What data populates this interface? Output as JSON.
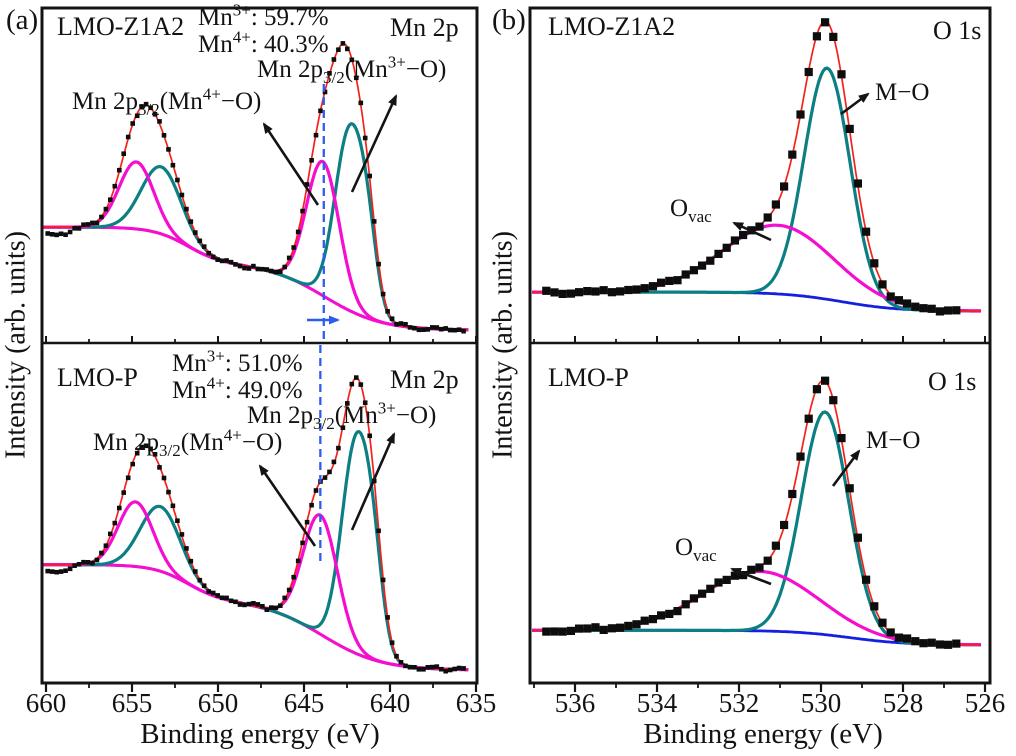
{
  "figure": {
    "panel_a": {
      "label": "(a)",
      "ylabel": "Intensity (arb. units)",
      "xlabel": "Binding energy (eV)",
      "top": {
        "sample": "LMO-Z1A2",
        "region": "Mn 2p",
        "ratio_line1": "Mn^{3+}: 59.7%",
        "ratio_line2": "Mn^{4+}: 40.3%",
        "annotation_mn3": "Mn 2p_{3/2}(Mn^{3+}−O)",
        "annotation_mn4": "Mn 2p_{3/2}(Mn^{4+}−O)"
      },
      "bottom": {
        "sample": "LMO-P",
        "region": "Mn 2p",
        "ratio_line1": "Mn^{3+}: 51.0%",
        "ratio_line2": "Mn^{4+}: 49.0%",
        "annotation_mn3": "Mn 2p_{3/2}(Mn^{3+}−O)",
        "annotation_mn4": "Mn 2p_{3/2}(Mn^{4+}−O)"
      }
    },
    "panel_b": {
      "label": "(b)",
      "ylabel": "Intensity (arb. units)",
      "xlabel": "Binding energy (eV)",
      "top": {
        "sample": "LMO-Z1A2",
        "region": "O 1s",
        "annotation_mo": "M−O",
        "annotation_ovac": "O_{vac}"
      },
      "bottom": {
        "sample": "LMO-P",
        "region": "O 1s",
        "annotation_mo": "M−O",
        "annotation_ovac": "O_{vac}"
      }
    }
  },
  "chart_data": {
    "type": "line",
    "description": "XPS spectra: (a) Mn 2p of LMO-Z1A2 (top) and LMO-P (bottom); (b) O 1s of LMO-Z1A2 (top) and LMO-P (bottom). Black squares = measured data, red = fit envelope, teal/magenta = fitted components, magenta/blue sigmoid = background. Intensity in arbitrary units (no y ticks).",
    "colors": {
      "data_points": "#0d0d0d",
      "envelope": "#f3221a",
      "component_teal": "#0b7f82",
      "component_magenta": "#f50dd0",
      "background_blue": "#1420e0",
      "guide_blue": "#2f5bf0",
      "axis": "#141414"
    },
    "panel_a": {
      "x_axis": {
        "label": "Binding energy (eV)",
        "unit": "eV",
        "range": [
          660.3,
          634.8
        ],
        "reversed": true,
        "major_ticks": [
          660,
          655,
          650,
          645,
          640,
          635
        ],
        "minor_ticks": [
          657.5,
          652.5,
          647.5,
          642.5,
          637.5
        ]
      },
      "y_axis": {
        "label": "Intensity (arb. units)"
      },
      "guide_line_ev": {
        "top_panel": 643.85,
        "bottom_panel": 644.05,
        "shift_arrow": "toward lower binding energy"
      },
      "spectra": {
        "top": {
          "sample": "LMO-Z1A2",
          "region": "Mn 2p",
          "mn3_percent": 59.7,
          "mn4_percent": 40.3,
          "background": {
            "base": 0.038,
            "steps": [
              {
                "center": 651.8,
                "width": 1.0,
                "amp": 0.108
              },
              {
                "center": 643.8,
                "width": 1.65,
                "amp": 0.2
              }
            ]
          },
          "mn4_peaks": [
            {
              "center": 654.75,
              "amp": 0.2,
              "sigma": 1.0
            },
            {
              "center": 643.9,
              "amp": 0.4,
              "sigma": 0.95
            }
          ],
          "mn3_peaks": [
            {
              "center": 653.3,
              "amp": 0.2,
              "sigma": 1.15
            },
            {
              "center": 642.35,
              "amp": 0.53,
              "sigma": 0.85
            },
            {
              "center": 641.3,
              "amp": 0.15,
              "sigma": 0.55
            }
          ],
          "envelope_scale": 1.17,
          "data_range": [
            659.9,
            635.65
          ],
          "data_step": 0.26
        },
        "bottom": {
          "sample": "LMO-P",
          "region": "Mn 2p",
          "mn3_percent": 51.0,
          "mn4_percent": 49.0,
          "background": {
            "base": 0.038,
            "steps": [
              {
                "center": 651.8,
                "width": 1.0,
                "amp": 0.105
              },
              {
                "center": 643.95,
                "width": 1.7,
                "amp": 0.205
              }
            ]
          },
          "mn4_peaks": [
            {
              "center": 654.8,
              "amp": 0.19,
              "sigma": 1.0
            },
            {
              "center": 644.05,
              "amp": 0.35,
              "sigma": 1.0
            }
          ],
          "mn3_peaks": [
            {
              "center": 653.35,
              "amp": 0.19,
              "sigma": 1.15
            },
            {
              "center": 641.95,
              "amp": 0.62,
              "sigma": 0.85
            },
            {
              "center": 640.95,
              "amp": 0.15,
              "sigma": 0.55
            }
          ],
          "envelope_scale": 1.18,
          "data_range": [
            659.9,
            635.65
          ],
          "data_step": 0.26
        }
      }
    },
    "panel_b": {
      "x_axis": {
        "label": "Binding energy (eV)",
        "unit": "eV",
        "range": [
          537.1,
          525.9
        ],
        "reversed": true,
        "major_ticks": [
          536,
          534,
          532,
          530,
          528,
          526
        ],
        "minor_ticks": [
          537,
          535,
          533,
          531,
          529,
          527
        ]
      },
      "y_axis": {
        "label": "Intensity (arb. units)"
      },
      "spectra": {
        "top": {
          "sample": "LMO-Z1A2",
          "region": "O 1s",
          "background": {
            "base": 0.095,
            "steps": [
              {
                "center": 529.5,
                "width": 0.7,
                "amp": 0.057
              }
            ]
          },
          "ovac_peaks": [
            {
              "center": 531.05,
              "amp": 0.205,
              "sigma": 1.35
            }
          ],
          "mo_peaks": [
            {
              "center": 529.85,
              "amp": 0.69,
              "sigma": 0.56
            }
          ],
          "envelope_scale": 1.0,
          "data_range": [
            536.7,
            526.55
          ],
          "data_step": 0.2
        },
        "bottom": {
          "sample": "LMO-P",
          "region": "O 1s",
          "background": {
            "base": 0.112,
            "steps": [
              {
                "center": 529.3,
                "width": 0.7,
                "amp": 0.043
              }
            ]
          },
          "ovac_peaks": [
            {
              "center": 531.5,
              "amp": 0.175,
              "sigma": 1.4
            }
          ],
          "mo_peaks": [
            {
              "center": 529.9,
              "amp": 0.655,
              "sigma": 0.58
            }
          ],
          "envelope_scale": 1.0,
          "data_range": [
            536.7,
            526.55
          ],
          "data_step": 0.2
        }
      }
    }
  }
}
